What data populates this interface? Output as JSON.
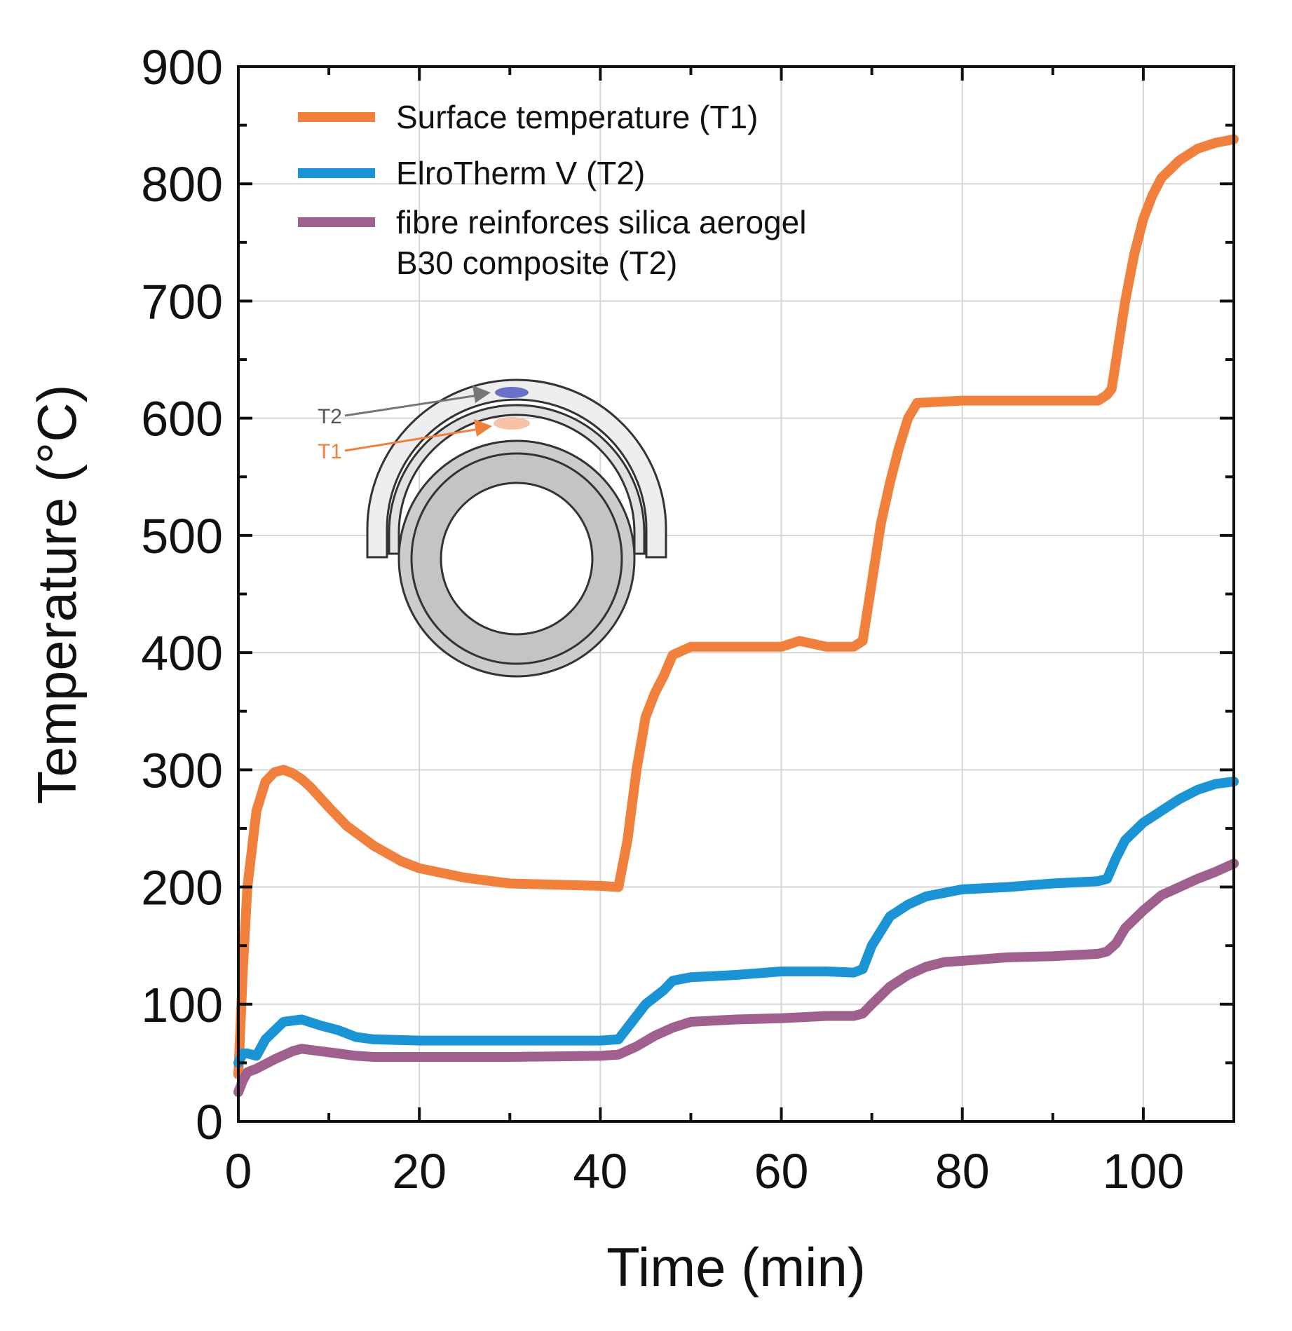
{
  "chart_data": {
    "type": "line",
    "xlabel": "Time (min)",
    "ylabel": "Temperature (°C)",
    "xlim": [
      0,
      110
    ],
    "ylim": [
      0,
      900
    ],
    "x_ticks": [
      0,
      20,
      40,
      60,
      80,
      100
    ],
    "y_ticks": [
      0,
      100,
      200,
      300,
      400,
      500,
      600,
      700,
      800,
      900
    ],
    "grid": true,
    "legend_position": "top-left",
    "series": [
      {
        "name": "Surface temperature (T1)",
        "legend_lines": [
          "Surface temperature (T1)"
        ],
        "color": "#f0803c",
        "x": [
          0,
          0.5,
          1,
          2,
          3,
          4,
          5,
          6,
          7,
          8,
          10,
          12,
          15,
          18,
          20,
          25,
          30,
          35,
          40,
          42,
          43,
          44,
          45,
          46,
          47,
          48,
          50,
          55,
          60,
          62,
          65,
          68,
          69,
          70,
          71,
          72,
          73,
          74,
          75,
          80,
          85,
          90,
          95,
          96,
          96.5,
          97,
          98,
          99,
          100,
          101,
          102,
          104,
          106,
          108,
          110
        ],
        "y": [
          40,
          130,
          200,
          265,
          290,
          298,
          300,
          297,
          292,
          285,
          268,
          252,
          235,
          222,
          216,
          208,
          203,
          202,
          201,
          200,
          240,
          300,
          345,
          365,
          380,
          398,
          405,
          405,
          405,
          410,
          405,
          405,
          410,
          460,
          510,
          545,
          575,
          600,
          613,
          615,
          615,
          615,
          615,
          620,
          625,
          650,
          700,
          740,
          770,
          790,
          805,
          820,
          830,
          835,
          838
        ]
      },
      {
        "name": "ElroTherm V (T2)",
        "legend_lines": [
          "ElroTherm V (T2)"
        ],
        "color": "#1b94d6",
        "x": [
          0,
          0.5,
          1,
          2,
          3,
          5,
          7,
          9,
          11,
          13,
          15,
          20,
          30,
          40,
          42,
          43,
          45,
          47,
          48,
          50,
          55,
          60,
          65,
          68,
          69,
          70,
          72,
          74,
          76,
          80,
          85,
          90,
          95,
          96,
          97,
          98,
          100,
          102,
          104,
          106,
          108,
          110
        ],
        "y": [
          50,
          58,
          58,
          56,
          70,
          85,
          87,
          82,
          78,
          72,
          70,
          69,
          69,
          69,
          70,
          80,
          100,
          112,
          120,
          123,
          125,
          128,
          128,
          127,
          130,
          150,
          175,
          185,
          192,
          198,
          200,
          203,
          205,
          207,
          225,
          240,
          255,
          265,
          275,
          283,
          288,
          290
        ]
      },
      {
        "name": "fibre reinforces silica aerogel B30 composite (T2)",
        "legend_lines": [
          "fibre reinforces silica aerogel",
          "B30 composite (T2)"
        ],
        "color": "#a0608e",
        "x": [
          0,
          0.5,
          1,
          2,
          4,
          6,
          7,
          9,
          11,
          13,
          15,
          20,
          30,
          40,
          42,
          44,
          46,
          48,
          50,
          55,
          60,
          65,
          68,
          69,
          70,
          72,
          74,
          76,
          78,
          80,
          85,
          90,
          95,
          96,
          97,
          98,
          100,
          102,
          104,
          106,
          108,
          110
        ],
        "y": [
          25,
          35,
          42,
          45,
          53,
          60,
          62,
          60,
          58,
          56,
          55,
          55,
          55,
          56,
          57,
          64,
          73,
          80,
          85,
          87,
          88,
          90,
          90,
          92,
          100,
          115,
          125,
          132,
          136,
          137,
          140,
          141,
          143,
          145,
          152,
          165,
          180,
          193,
          200,
          207,
          213,
          220
        ]
      }
    ]
  },
  "inset_diagram": {
    "label_t2": "T2",
    "label_t1": "T1",
    "color_t2": "#555555",
    "color_t1": "#f0803c"
  }
}
